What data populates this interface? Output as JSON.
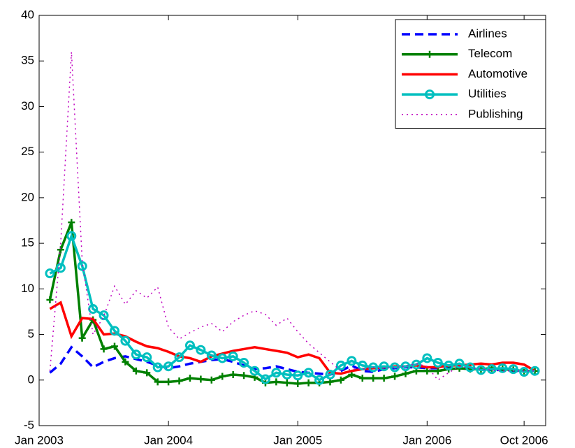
{
  "chart_data": {
    "type": "line",
    "x": [
      "2003-02",
      "2003-03",
      "2003-04",
      "2003-05",
      "2003-06",
      "2003-07",
      "2003-08",
      "2003-09",
      "2003-10",
      "2003-11",
      "2003-12",
      "2004-01",
      "2004-02",
      "2004-03",
      "2004-04",
      "2004-05",
      "2004-06",
      "2004-07",
      "2004-08",
      "2004-09",
      "2004-10",
      "2004-11",
      "2004-12",
      "2005-01",
      "2005-02",
      "2005-03",
      "2005-04",
      "2005-05",
      "2005-06",
      "2005-07",
      "2005-08",
      "2005-09",
      "2005-10",
      "2005-11",
      "2005-12",
      "2006-01",
      "2006-02",
      "2006-03",
      "2006-04",
      "2006-05",
      "2006-06",
      "2006-07",
      "2006-08",
      "2006-09",
      "2006-10",
      "2006-11"
    ],
    "series": [
      {
        "name": "Airlines",
        "color": "#0000ff",
        "linestyle": "dashed",
        "marker": "none",
        "values": [
          0.8,
          1.8,
          3.6,
          2.6,
          1.4,
          2.0,
          2.4,
          2.6,
          2.3,
          2.0,
          1.6,
          1.3,
          1.5,
          1.8,
          2.0,
          2.2,
          2.3,
          2.0,
          1.6,
          1.2,
          1.3,
          1.5,
          1.2,
          0.9,
          0.8,
          0.7,
          0.6,
          1.0,
          1.6,
          1.0,
          0.9,
          1.2,
          1.3,
          1.4,
          1.4,
          1.3,
          1.3,
          1.4,
          1.3,
          1.2,
          1.2,
          1.1,
          1.1,
          1.0,
          1.0,
          1.0
        ]
      },
      {
        "name": "Telecom",
        "color": "#008000",
        "linestyle": "solid",
        "marker": "plus",
        "values": [
          8.8,
          14.3,
          17.3,
          4.6,
          6.6,
          3.4,
          3.7,
          2.0,
          1.0,
          0.8,
          -0.2,
          -0.2,
          -0.1,
          0.2,
          0.1,
          0.0,
          0.4,
          0.6,
          0.5,
          0.3,
          -0.3,
          -0.2,
          -0.3,
          -0.4,
          -0.3,
          -0.3,
          -0.2,
          0.0,
          0.6,
          0.2,
          0.2,
          0.2,
          0.4,
          0.7,
          1.0,
          1.0,
          1.0,
          1.2,
          1.3,
          1.2,
          1.2,
          1.3,
          1.2,
          1.1,
          1.0,
          1.0
        ]
      },
      {
        "name": "Automotive",
        "color": "#ff0000",
        "linestyle": "solid",
        "marker": "none",
        "values": [
          7.8,
          8.5,
          4.8,
          6.8,
          6.7,
          5.0,
          5.1,
          4.8,
          4.2,
          3.7,
          3.5,
          3.1,
          2.6,
          2.4,
          2.0,
          2.6,
          2.9,
          3.2,
          3.4,
          3.6,
          3.4,
          3.2,
          3.0,
          2.5,
          2.8,
          2.4,
          0.8,
          0.7,
          1.0,
          1.2,
          1.3,
          1.4,
          1.5,
          1.5,
          1.6,
          1.4,
          1.4,
          1.6,
          1.6,
          1.7,
          1.8,
          1.7,
          1.9,
          1.9,
          1.7,
          1.0
        ]
      },
      {
        "name": "Utilities",
        "color": "#00bfbf",
        "linestyle": "solid",
        "marker": "circle",
        "values": [
          11.7,
          12.3,
          15.8,
          12.5,
          7.8,
          7.1,
          5.4,
          4.3,
          2.8,
          2.5,
          1.4,
          1.5,
          2.5,
          3.8,
          3.3,
          2.7,
          2.4,
          2.6,
          1.9,
          1.0,
          0.1,
          0.8,
          0.6,
          0.5,
          0.8,
          0.0,
          0.6,
          1.6,
          2.1,
          1.6,
          1.4,
          1.5,
          1.4,
          1.5,
          1.7,
          2.4,
          1.9,
          1.6,
          1.8,
          1.4,
          1.1,
          1.2,
          1.3,
          1.2,
          0.9,
          1.0
        ]
      },
      {
        "name": "Publishing",
        "color": "#bf00bf",
        "linestyle": "dotted",
        "marker": "none",
        "values": [
          1.0,
          15.0,
          36.0,
          13.0,
          5.0,
          7.0,
          10.3,
          8.3,
          9.8,
          9.0,
          10.2,
          5.8,
          4.5,
          5.2,
          5.8,
          6.2,
          5.3,
          6.4,
          7.1,
          7.6,
          7.2,
          6.0,
          6.8,
          5.3,
          4.0,
          3.0,
          2.0,
          1.0,
          1.2,
          1.2,
          1.4,
          1.3,
          1.4,
          1.5,
          1.8,
          1.5,
          0.0,
          0.8,
          1.5,
          1.3,
          1.2,
          1.1,
          1.0,
          1.0,
          1.0,
          1.0
        ]
      }
    ],
    "xlim": [
      "2003-01",
      "2006-12"
    ],
    "xticks": [
      {
        "value": "2003-01",
        "label": "Jan 2003"
      },
      {
        "value": "2004-01",
        "label": "Jan 2004"
      },
      {
        "value": "2005-01",
        "label": "Jan 2005"
      },
      {
        "value": "2006-01",
        "label": "Jan 2006"
      },
      {
        "value": "2006-10",
        "label": "Oct 2006"
      }
    ],
    "ylim": [
      -5,
      40
    ],
    "yticks": [
      -5,
      0,
      5,
      10,
      15,
      20,
      25,
      30,
      35,
      40
    ],
    "grid": false,
    "legend": "upper-right"
  }
}
